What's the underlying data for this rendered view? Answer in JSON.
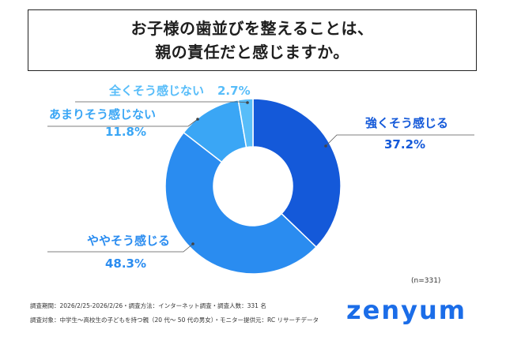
{
  "title": {
    "line1": "お子様の歯並びを整えることは、",
    "line2": "親の責任だと感じますか。"
  },
  "chart_data": {
    "type": "pie",
    "style": "donut",
    "categories": [
      "強くそう感じる",
      "ややそう感じる",
      "あまりそう感じない",
      "全くそう感じない"
    ],
    "values": [
      37.2,
      48.3,
      11.8,
      2.7
    ],
    "value_labels": [
      "37.2%",
      "48.3%",
      "11.8%",
      "2.7%"
    ],
    "colors": [
      "#1459d9",
      "#2a8cf0",
      "#3aa6f5",
      "#58bdf9"
    ],
    "sample_note": "(n=331)"
  },
  "footer": {
    "line1": "調査期間：2026/2/25-2026/2/26・調査方法：インターネット調査・調査人数：331 名",
    "line2": "調査対象：中学生～高校生の子どもを持つ親（20 代～ 50 代の男女）・モニター提供元：RC リサーチデータ"
  },
  "logo": {
    "text": "zenyum",
    "color": "#1b6de8"
  }
}
